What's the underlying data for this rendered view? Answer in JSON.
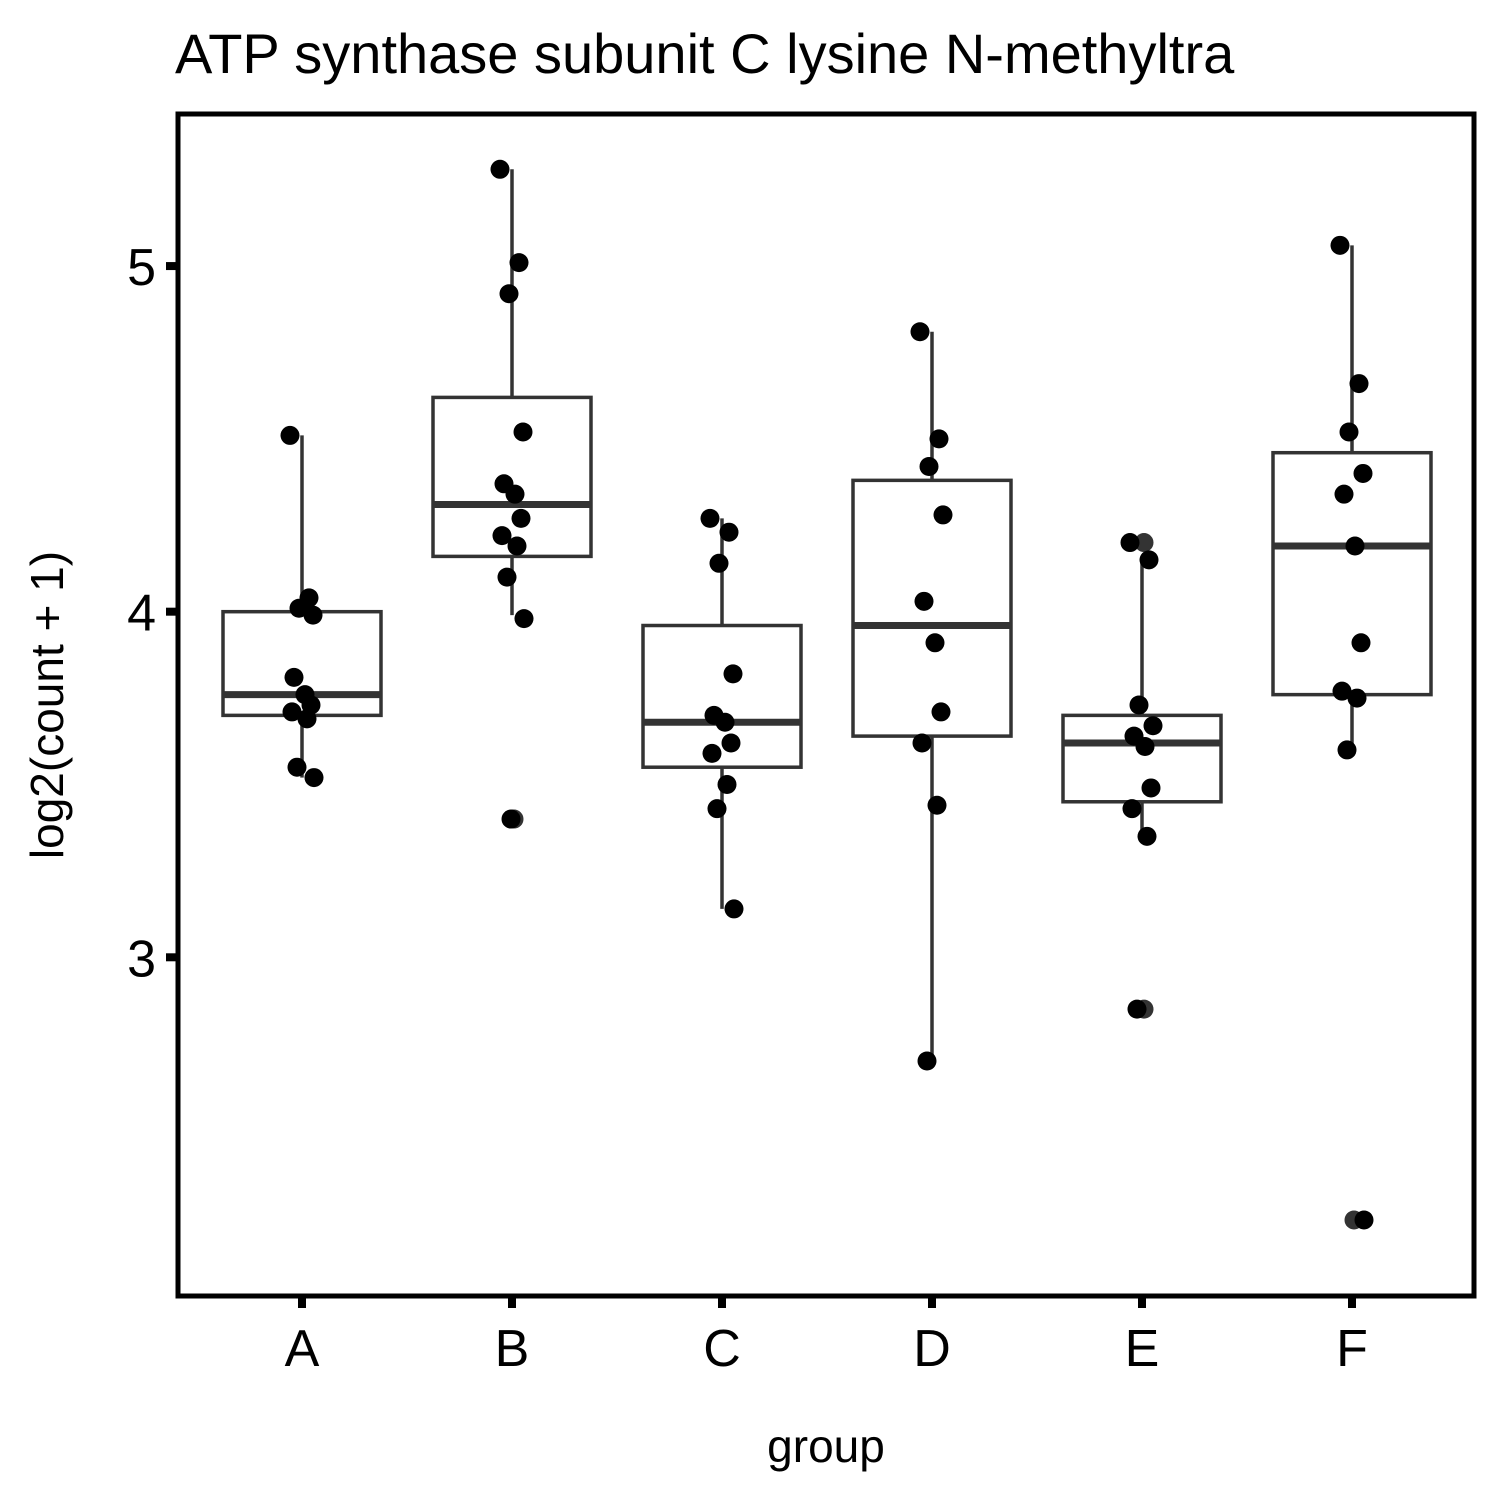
{
  "chart_data": {
    "type": "box",
    "title": "ATP synthase subunit C lysine N-methyltra",
    "xlabel": "group",
    "ylabel": "log2(count + 1)",
    "ylim": [
      2.02,
      5.44
    ],
    "yticks": [
      3,
      4,
      5
    ],
    "categories": [
      "A",
      "B",
      "C",
      "D",
      "E",
      "F"
    ],
    "boxes": [
      {
        "q1": 3.7,
        "median": 3.76,
        "q3": 4.0,
        "whisker_low": 3.52,
        "whisker_high": 4.51
      },
      {
        "q1": 4.16,
        "median": 4.31,
        "q3": 4.62,
        "whisker_low": 3.99,
        "whisker_high": 5.28
      },
      {
        "q1": 3.55,
        "median": 3.68,
        "q3": 3.96,
        "whisker_low": 3.14,
        "whisker_high": 4.27
      },
      {
        "q1": 3.64,
        "median": 3.96,
        "q3": 4.38,
        "whisker_low": 2.7,
        "whisker_high": 4.81
      },
      {
        "q1": 3.45,
        "median": 3.62,
        "q3": 3.7,
        "whisker_low": 3.35,
        "whisker_high": 4.15
      },
      {
        "q1": 3.76,
        "median": 4.19,
        "q3": 4.46,
        "whisker_low": 3.6,
        "whisker_high": 5.06
      }
    ],
    "points": [
      {
        "group": "A",
        "values": [
          4.51,
          4.04,
          4.01,
          3.99,
          3.81,
          3.76,
          3.73,
          3.71,
          3.69,
          3.55,
          3.52
        ]
      },
      {
        "group": "B",
        "values": [
          5.28,
          5.01,
          4.92,
          4.52,
          4.37,
          4.34,
          4.27,
          4.22,
          4.19,
          4.1,
          3.98,
          3.4
        ]
      },
      {
        "group": "C",
        "values": [
          4.27,
          4.23,
          4.14,
          3.82,
          3.7,
          3.68,
          3.62,
          3.59,
          3.5,
          3.43,
          3.14
        ]
      },
      {
        "group": "D",
        "values": [
          4.81,
          4.5,
          4.42,
          4.28,
          4.03,
          3.91,
          3.71,
          3.62,
          3.44,
          2.7
        ]
      },
      {
        "group": "E",
        "values": [
          4.2,
          4.15,
          3.73,
          3.67,
          3.64,
          3.61,
          3.49,
          3.43,
          3.35,
          2.85
        ]
      },
      {
        "group": "F",
        "values": [
          5.06,
          4.66,
          4.52,
          4.4,
          4.34,
          4.19,
          3.91,
          3.77,
          3.75,
          3.6,
          2.24
        ]
      }
    ],
    "outliers": [
      {
        "group": "B",
        "value": 3.4
      },
      {
        "group": "E",
        "value": 4.2
      },
      {
        "group": "E",
        "value": 2.85
      },
      {
        "group": "F",
        "value": 2.24
      }
    ],
    "grid": false,
    "legend": "none",
    "colors": {
      "points": "#000000",
      "box": "#333333",
      "outlier": "#333333",
      "panel_border": "#000000"
    }
  }
}
